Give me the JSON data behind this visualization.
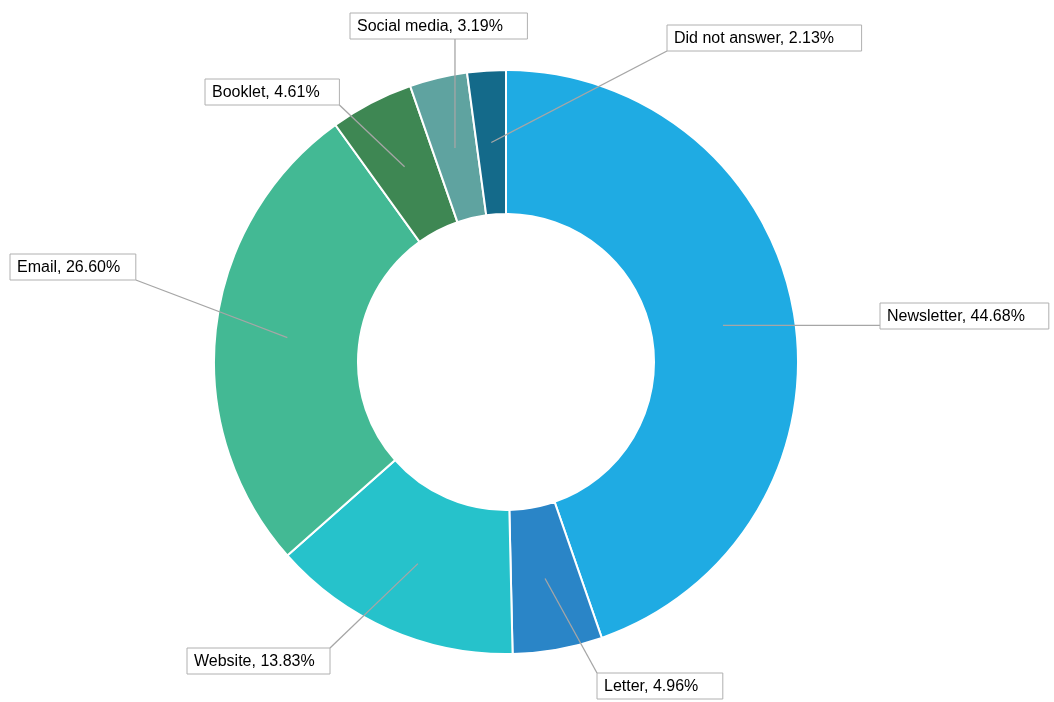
{
  "chart_data": {
    "type": "donut",
    "categories": [
      "Newsletter",
      "Letter",
      "Website",
      "Email",
      "Booklet",
      "Social media",
      "Did not answer"
    ],
    "values": [
      44.68,
      4.96,
      13.83,
      26.6,
      4.61,
      3.19,
      2.13
    ],
    "value_labels": [
      "44.68%",
      "4.96%",
      "13.83%",
      "26.60%",
      "4.61%",
      "3.19%",
      "2.13%"
    ],
    "colors": [
      "#1fabe3",
      "#2a85c7",
      "#26c2cb",
      "#43b994",
      "#3e8753",
      "#5fa3a0",
      "#146a8a"
    ],
    "legend": false
  }
}
